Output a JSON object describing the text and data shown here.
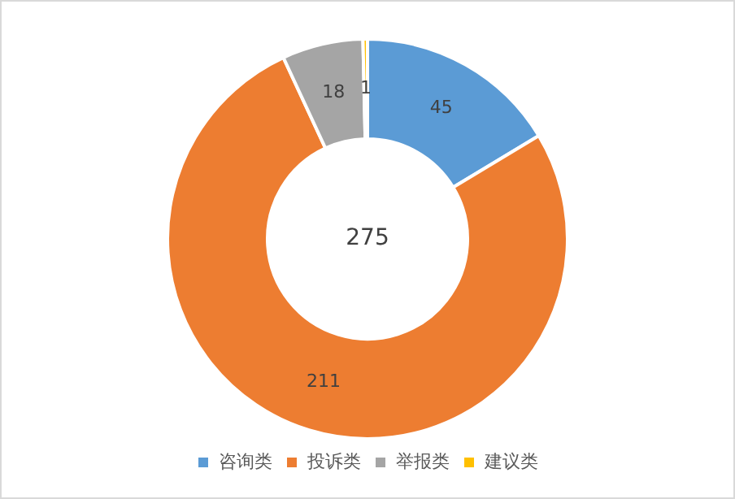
{
  "chart_data": {
    "type": "donut",
    "categories": [
      "咨询类",
      "投诉类",
      "举报类",
      "建议类"
    ],
    "values": [
      45,
      211,
      18,
      1
    ],
    "colors": [
      "#5b9bd5",
      "#ed7d31",
      "#a5a5a5",
      "#ffc000"
    ],
    "data_labels": true,
    "legend": "bottom",
    "annotations": [
      "275"
    ]
  }
}
